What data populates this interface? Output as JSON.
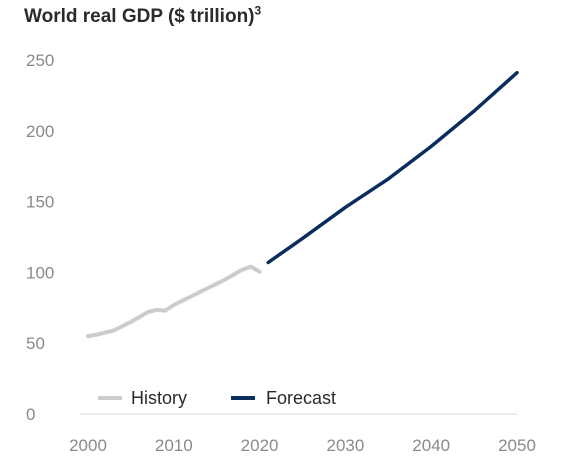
{
  "chart_data": {
    "type": "line",
    "title": "World real GDP ($ trillion)",
    "title_superscript": "3",
    "xlabel": "",
    "ylabel": "",
    "xlim": [
      2000,
      2050
    ],
    "ylim": [
      0,
      250
    ],
    "x_ticks": [
      2000,
      2010,
      2020,
      2030,
      2040,
      2050
    ],
    "y_ticks": [
      0,
      50,
      100,
      150,
      200,
      250
    ],
    "grid": false,
    "legend_position": "bottom-left",
    "series": [
      {
        "name": "History",
        "color": "#cccccc",
        "x": [
          2000,
          2001,
          2002,
          2003,
          2004,
          2005,
          2006,
          2007,
          2008,
          2009,
          2010,
          2011,
          2012,
          2013,
          2014,
          2015,
          2016,
          2017,
          2018,
          2019,
          2020
        ],
        "y": [
          55,
          56,
          57.5,
          59,
          62,
          65,
          68.5,
          72,
          73.5,
          73,
          77,
          80,
          83,
          86,
          89,
          92,
          95,
          98.5,
          102,
          104,
          100.5
        ]
      },
      {
        "name": "Forecast",
        "color": "#0a2d5e",
        "x": [
          2021,
          2025,
          2030,
          2035,
          2040,
          2045,
          2050
        ],
        "y": [
          107,
          124,
          146,
          166,
          189,
          214,
          241
        ]
      }
    ]
  }
}
